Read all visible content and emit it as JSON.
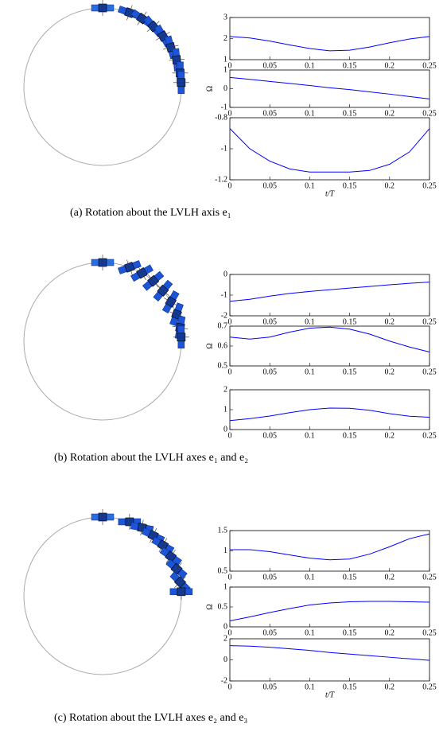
{
  "chart_data": [
    {
      "type": "line",
      "xlim": [
        0,
        0.25
      ],
      "xticks": [
        0,
        0.05,
        0.1,
        0.15,
        0.2,
        0.25
      ],
      "ylim": [
        1,
        3
      ],
      "yticks": [
        1,
        2,
        3
      ],
      "x": [
        0,
        0.025,
        0.05,
        0.075,
        0.1,
        0.125,
        0.15,
        0.175,
        0.2,
        0.225,
        0.25
      ],
      "series": [
        {
          "color": "#0000ff",
          "values": [
            2.1,
            2.03,
            1.88,
            1.7,
            1.53,
            1.42,
            1.45,
            1.6,
            1.8,
            1.98,
            2.1
          ]
        }
      ]
    },
    {
      "type": "line",
      "ylabel": "Ω",
      "xlim": [
        0,
        0.25
      ],
      "xticks": [
        0,
        0.05,
        0.1,
        0.15,
        0.2,
        0.25
      ],
      "ylim": [
        -1,
        1
      ],
      "yticks": [
        -1,
        0,
        1
      ],
      "x": [
        0,
        0.025,
        0.05,
        0.075,
        0.1,
        0.125,
        0.15,
        0.175,
        0.2,
        0.225,
        0.25
      ],
      "series": [
        {
          "color": "#0000ff",
          "values": [
            0.6,
            0.5,
            0.39,
            0.28,
            0.17,
            0.05,
            -0.05,
            -0.17,
            -0.29,
            -0.42,
            -0.55
          ]
        }
      ]
    },
    {
      "type": "line",
      "xlabel": "t/T",
      "xlim": [
        0,
        0.25
      ],
      "xticks": [
        0,
        0.05,
        0.1,
        0.15,
        0.2,
        0.25
      ],
      "ylim": [
        -1.2,
        -0.8
      ],
      "yticks": [
        -1.2,
        -1,
        -0.8
      ],
      "x": [
        0,
        0.025,
        0.05,
        0.075,
        0.1,
        0.125,
        0.15,
        0.175,
        0.2,
        0.225,
        0.25
      ],
      "series": [
        {
          "color": "#0000ff",
          "values": [
            -0.87,
            -1.0,
            -1.08,
            -1.13,
            -1.15,
            -1.15,
            -1.15,
            -1.14,
            -1.1,
            -1.02,
            -0.87
          ]
        }
      ]
    },
    {
      "type": "line",
      "xlim": [
        0,
        0.25
      ],
      "xticks": [
        0,
        0.05,
        0.1,
        0.15,
        0.2,
        0.25
      ],
      "ylim": [
        -2,
        0
      ],
      "yticks": [
        -2,
        -1,
        0
      ],
      "x": [
        0,
        0.025,
        0.05,
        0.075,
        0.1,
        0.125,
        0.15,
        0.175,
        0.2,
        0.225,
        0.25
      ],
      "series": [
        {
          "color": "#0000ff",
          "values": [
            -1.3,
            -1.2,
            -1.05,
            -0.92,
            -0.82,
            -0.74,
            -0.66,
            -0.58,
            -0.5,
            -0.43,
            -0.37
          ]
        }
      ]
    },
    {
      "type": "line",
      "ylabel": "Ω",
      "xlim": [
        0,
        0.25
      ],
      "xticks": [
        0,
        0.05,
        0.1,
        0.15,
        0.2,
        0.25
      ],
      "ylim": [
        0.5,
        0.7
      ],
      "yticks": [
        0.5,
        0.6,
        0.7
      ],
      "x": [
        0,
        0.025,
        0.05,
        0.075,
        0.1,
        0.125,
        0.15,
        0.175,
        0.2,
        0.225,
        0.25
      ],
      "series": [
        {
          "color": "#0000ff",
          "values": [
            0.645,
            0.635,
            0.645,
            0.67,
            0.69,
            0.695,
            0.685,
            0.66,
            0.625,
            0.595,
            0.57
          ]
        }
      ]
    },
    {
      "type": "line",
      "xlim": [
        0,
        0.25
      ],
      "xticks": [
        0,
        0.05,
        0.1,
        0.15,
        0.2,
        0.25
      ],
      "ylim": [
        0,
        2
      ],
      "yticks": [
        0,
        1,
        2
      ],
      "x": [
        0,
        0.025,
        0.05,
        0.075,
        0.1,
        0.125,
        0.15,
        0.175,
        0.2,
        0.225,
        0.25
      ],
      "series": [
        {
          "color": "#0000ff",
          "values": [
            0.45,
            0.55,
            0.68,
            0.85,
            1.0,
            1.08,
            1.07,
            0.97,
            0.8,
            0.67,
            0.62
          ]
        }
      ]
    },
    {
      "type": "line",
      "xlim": [
        0,
        0.25
      ],
      "xticks": [
        0,
        0.05,
        0.1,
        0.15,
        0.2,
        0.25
      ],
      "ylim": [
        0.5,
        1.5
      ],
      "yticks": [
        0.5,
        1,
        1.5
      ],
      "x": [
        0,
        0.025,
        0.05,
        0.075,
        0.1,
        0.125,
        0.15,
        0.175,
        0.2,
        0.225,
        0.25
      ],
      "series": [
        {
          "color": "#0000ff",
          "values": [
            1.03,
            1.03,
            0.98,
            0.9,
            0.82,
            0.78,
            0.8,
            0.92,
            1.1,
            1.3,
            1.42
          ]
        }
      ]
    },
    {
      "type": "line",
      "ylabel": "Ω",
      "xlim": [
        0,
        0.25
      ],
      "xticks": [
        0,
        0.05,
        0.1,
        0.15,
        0.2,
        0.25
      ],
      "ylim": [
        0,
        1
      ],
      "yticks": [
        0,
        0.5,
        1
      ],
      "x": [
        0,
        0.025,
        0.05,
        0.075,
        0.1,
        0.125,
        0.15,
        0.175,
        0.2,
        0.225,
        0.25
      ],
      "series": [
        {
          "color": "#0000ff",
          "values": [
            0.15,
            0.25,
            0.36,
            0.46,
            0.55,
            0.6,
            0.63,
            0.64,
            0.64,
            0.63,
            0.62
          ]
        }
      ]
    },
    {
      "type": "line",
      "xlabel": "t/T",
      "xlim": [
        0,
        0.25
      ],
      "xticks": [
        0,
        0.05,
        0.1,
        0.15,
        0.2,
        0.25
      ],
      "ylim": [
        -2,
        2
      ],
      "yticks": [
        -2,
        0,
        2
      ],
      "x": [
        0,
        0.025,
        0.05,
        0.075,
        0.1,
        0.125,
        0.15,
        0.175,
        0.2,
        0.225,
        0.25
      ],
      "series": [
        {
          "color": "#0000ff",
          "values": [
            1.35,
            1.3,
            1.2,
            1.05,
            0.9,
            0.7,
            0.55,
            0.4,
            0.25,
            0.1,
            -0.05
          ]
        }
      ]
    }
  ],
  "captions": [
    "(a) Rotation about the LVLH axis e₁",
    "(b) Rotation about the LVLH axes e₁ and e₂",
    "(c) Rotation about the LVLH axes e₂ and e₃"
  ]
}
